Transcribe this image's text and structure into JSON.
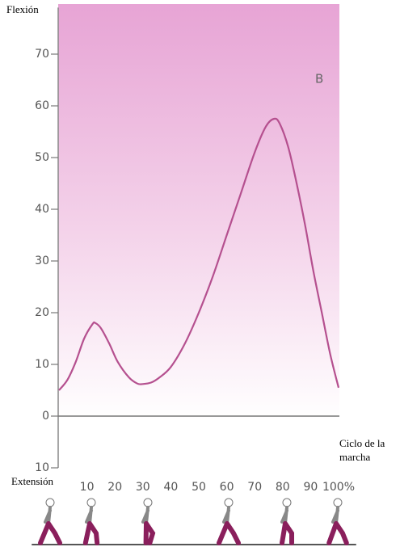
{
  "chart_data": {
    "type": "line",
    "y_label_top": "Flexión",
    "y_label_bottom": "Extensión",
    "x_label": "Ciclo de la marcha",
    "annotation": "B",
    "x": [
      0,
      3,
      6,
      9,
      12,
      13,
      15,
      18,
      21,
      25,
      28,
      30,
      33,
      36,
      40,
      45,
      50,
      55,
      60,
      65,
      70,
      74,
      77,
      79,
      82,
      85,
      88,
      91,
      94,
      97,
      100
    ],
    "series": [
      {
        "color": "#b5508f",
        "values": [
          5,
          7,
          10.5,
          15,
          17.8,
          18,
          17,
          14,
          10.5,
          7.5,
          6.3,
          6.2,
          6.5,
          7.5,
          9.5,
          14,
          20,
          27,
          35,
          43,
          51,
          56,
          57.5,
          56.5,
          52,
          45,
          37,
          28,
          20,
          12,
          5.5
        ]
      }
    ],
    "xlim": [
      0,
      100
    ],
    "xticks": [
      10,
      20,
      30,
      40,
      50,
      60,
      70,
      80,
      90,
      {
        "value": 100,
        "label": "100%"
      }
    ],
    "ylim": [
      -10,
      79
    ],
    "yticks": [
      {
        "value": -10,
        "label": "10"
      },
      0,
      10,
      20,
      30,
      40,
      50,
      60,
      70
    ]
  }
}
